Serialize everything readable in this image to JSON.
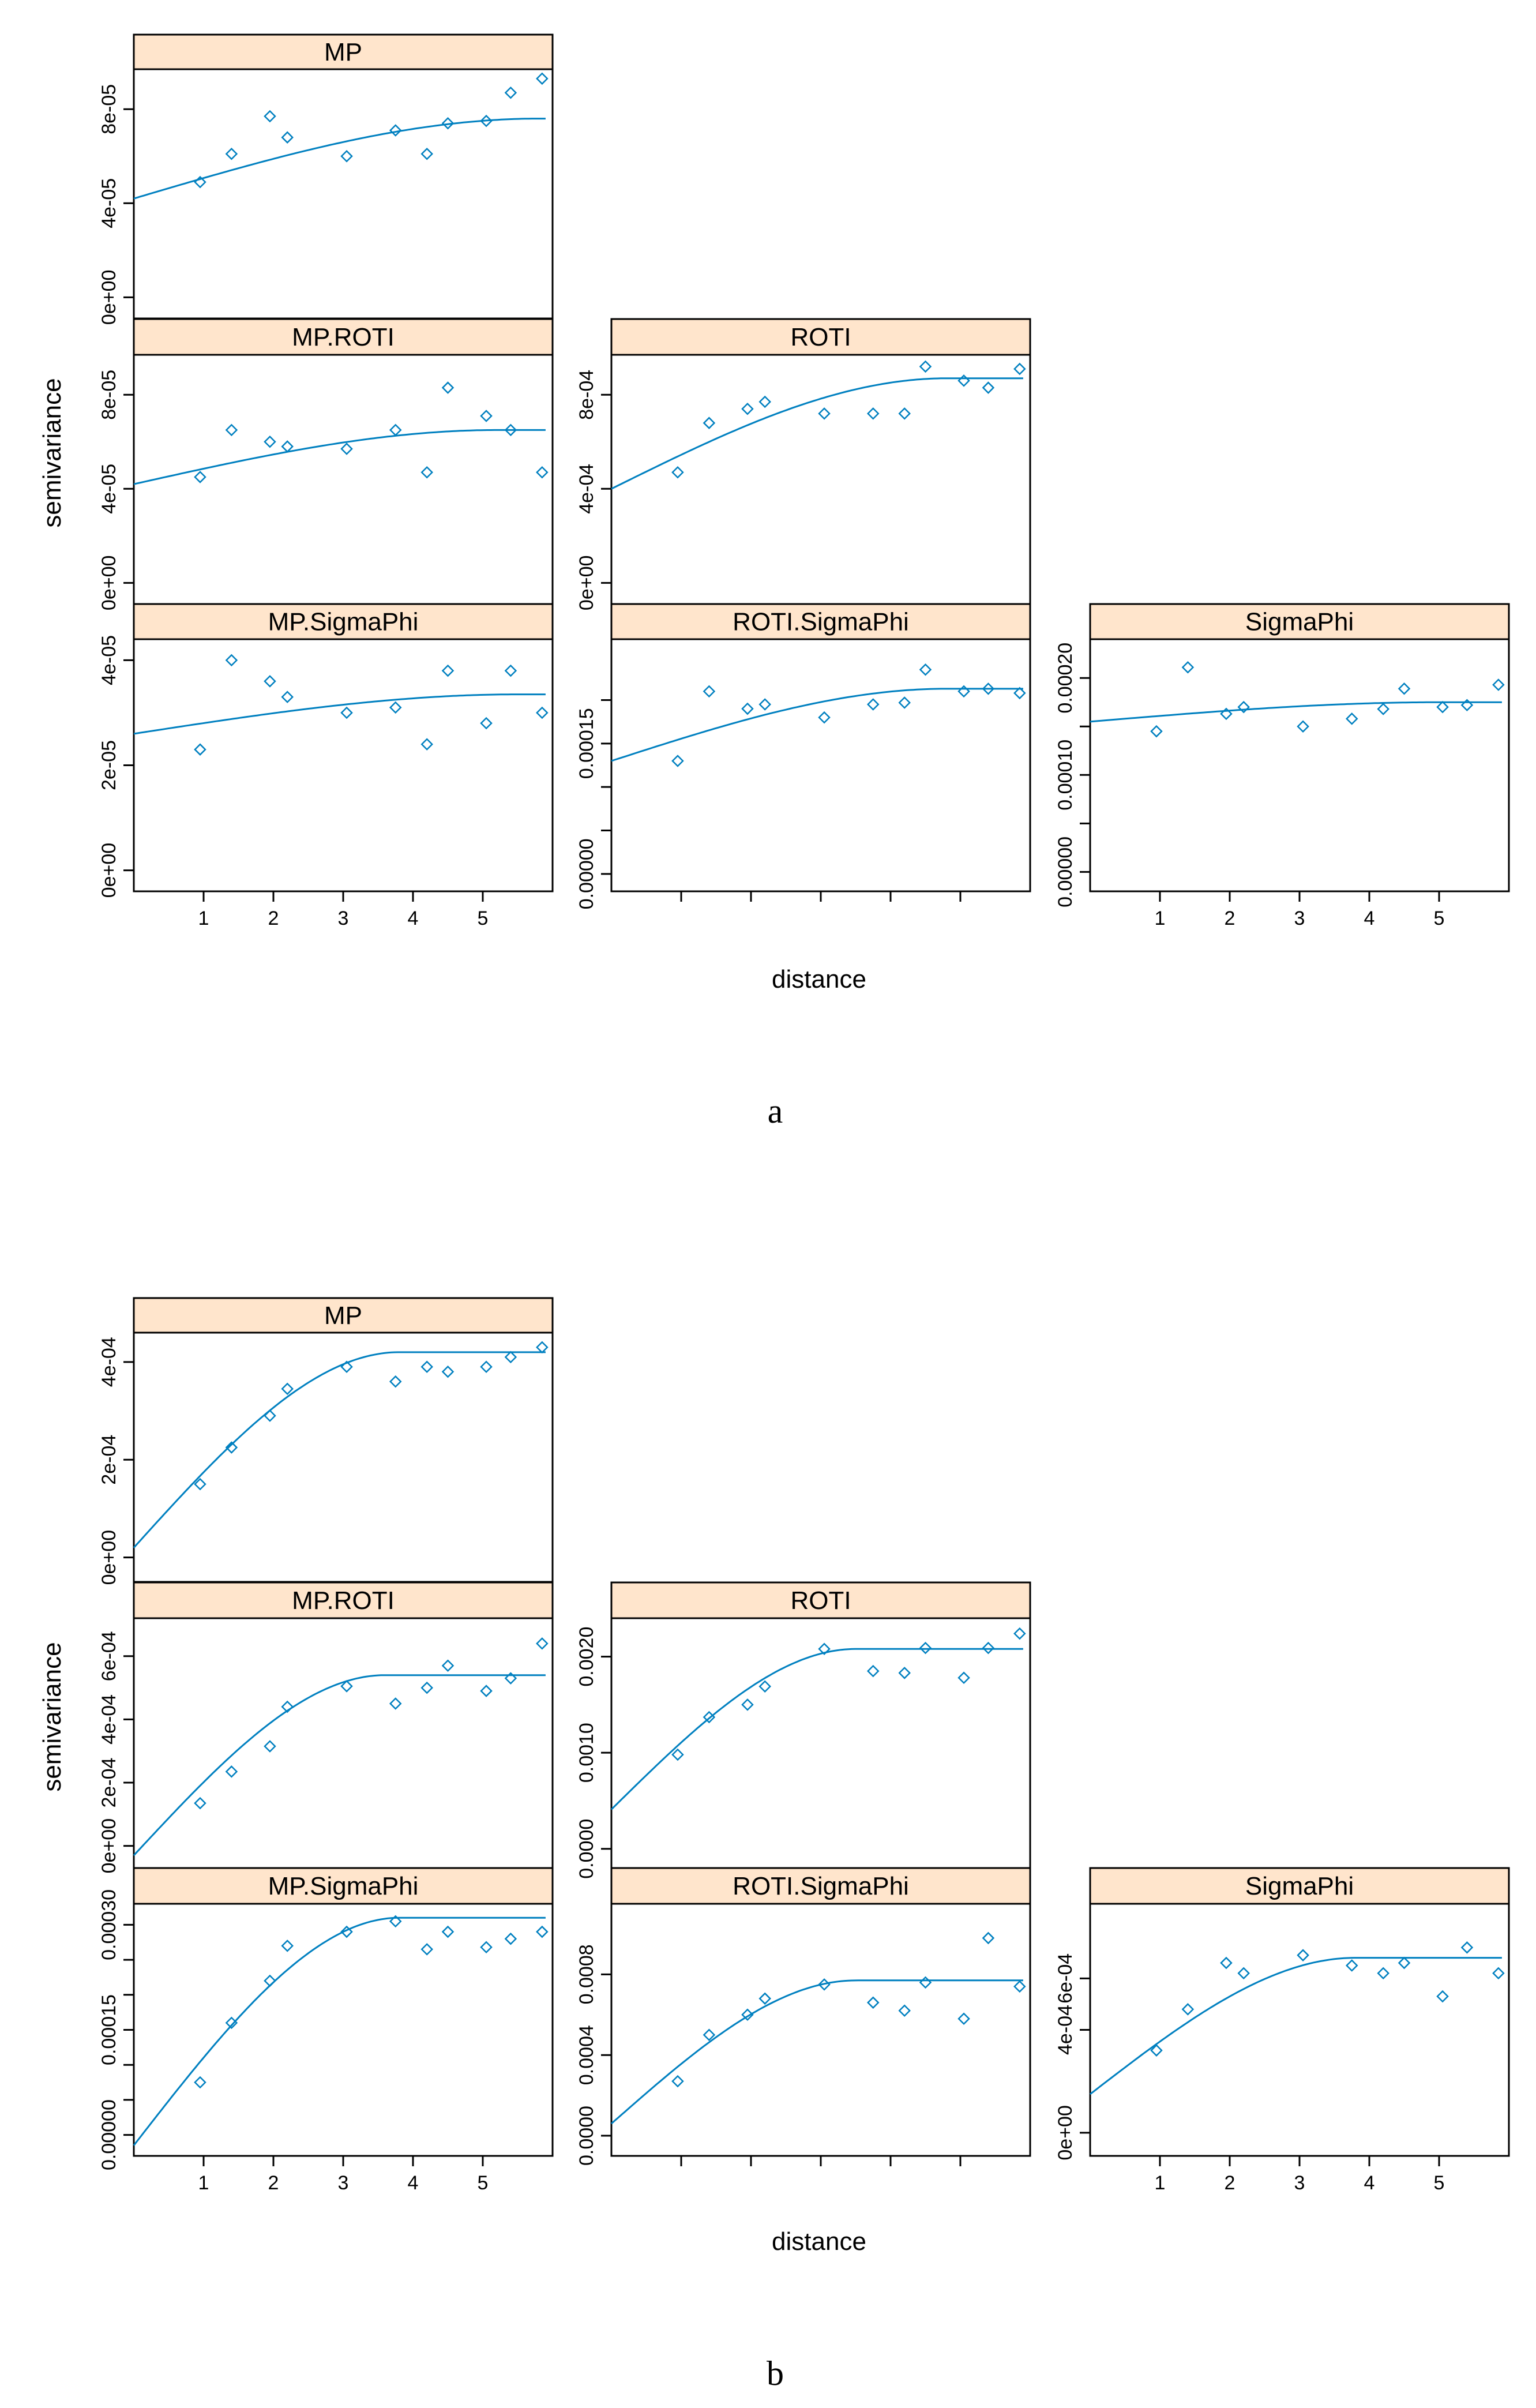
{
  "figure": {
    "xlabel": "distance",
    "ylabel": "semivariance",
    "caption_a": "a",
    "caption_b": "b",
    "colors": {
      "strip": "#FFE5CC",
      "line": "#0080C0",
      "points": "#0080C0",
      "frame": "#000000"
    }
  },
  "chart_data": [
    {
      "type": "scatter",
      "group": "a",
      "title": "MP",
      "xlabel": "distance",
      "ylabel": "semivariance",
      "xlim": [
        0,
        6
      ],
      "ylim": [
        -9e-06,
        9.7e-05
      ],
      "yticks": [
        0,
        4e-05,
        8e-05
      ],
      "ytick_labels": [
        "0e+00",
        "4e-05",
        "8e-05"
      ],
      "xticks": [
        1,
        2,
        3,
        4,
        5
      ],
      "xtick_labels": [],
      "points": [
        [
          0.95,
          4.9e-05
        ],
        [
          1.4,
          6.1e-05
        ],
        [
          1.95,
          7.7e-05
        ],
        [
          2.2,
          6.8e-05
        ],
        [
          3.05,
          6e-05
        ],
        [
          3.75,
          7.1e-05
        ],
        [
          4.2,
          6.1e-05
        ],
        [
          4.5,
          7.4e-05
        ],
        [
          5.05,
          7.5e-05
        ],
        [
          5.4,
          8.7e-05
        ],
        [
          5.85,
          9.3e-05
        ]
      ],
      "model": {
        "nugget": 4.2e-05,
        "sill": 7.6e-05,
        "range": 5.8
      }
    },
    {
      "type": "scatter",
      "group": "a",
      "title": "MP.ROTI",
      "xlim": [
        0,
        6
      ],
      "ylim": [
        -9e-06,
        9.7e-05
      ],
      "yticks": [
        0,
        4e-05,
        8e-05
      ],
      "ytick_labels": [
        "0e+00",
        "4e-05",
        "8e-05"
      ],
      "xticks": [
        1,
        2,
        3,
        4,
        5
      ],
      "xtick_labels": [],
      "points": [
        [
          0.95,
          4.5e-05
        ],
        [
          1.4,
          6.5e-05
        ],
        [
          1.95,
          6e-05
        ],
        [
          2.2,
          5.8e-05
        ],
        [
          3.05,
          5.7e-05
        ],
        [
          3.75,
          6.5e-05
        ],
        [
          4.2,
          4.7e-05
        ],
        [
          4.5,
          8.3e-05
        ],
        [
          5.05,
          7.1e-05
        ],
        [
          5.4,
          6.5e-05
        ],
        [
          5.85,
          4.7e-05
        ]
      ],
      "model": {
        "nugget": 4.2e-05,
        "sill": 6.5e-05,
        "range": 5.2
      }
    },
    {
      "type": "scatter",
      "group": "a",
      "title": "ROTI",
      "xlim": [
        0,
        6
      ],
      "ylim": [
        -9e-05,
        0.00097
      ],
      "yticks": [
        0,
        0.0004,
        0.0008
      ],
      "ytick_labels": [
        "0e+00",
        "4e-04",
        "8e-04"
      ],
      "xticks": [
        1,
        2,
        3,
        4,
        5
      ],
      "xtick_labels": [],
      "points": [
        [
          0.95,
          0.00047
        ],
        [
          1.4,
          0.00068
        ],
        [
          1.95,
          0.00074
        ],
        [
          2.2,
          0.00077
        ],
        [
          3.05,
          0.00072
        ],
        [
          3.75,
          0.00072
        ],
        [
          4.2,
          0.00072
        ],
        [
          4.5,
          0.00092
        ],
        [
          5.05,
          0.00086
        ],
        [
          5.4,
          0.00083
        ],
        [
          5.85,
          0.00091
        ]
      ],
      "model": {
        "nugget": 0.0004,
        "sill": 0.00087,
        "range": 4.8
      }
    },
    {
      "type": "scatter",
      "group": "a",
      "title": "MP.SigmaPhi",
      "xlim": [
        0,
        6
      ],
      "ylim": [
        -4e-06,
        4.4e-05
      ],
      "yticks": [
        0,
        2e-05,
        4e-05
      ],
      "ytick_labels": [
        "0e+00",
        "2e-05",
        "4e-05"
      ],
      "xticks": [
        1,
        2,
        3,
        4,
        5
      ],
      "xtick_labels": [
        "1",
        "2",
        "3",
        "4",
        "5"
      ],
      "points": [
        [
          0.95,
          2.3e-05
        ],
        [
          1.4,
          4e-05
        ],
        [
          1.95,
          3.6e-05
        ],
        [
          2.2,
          3.3e-05
        ],
        [
          3.05,
          3e-05
        ],
        [
          3.75,
          3.1e-05
        ],
        [
          4.2,
          2.4e-05
        ],
        [
          4.5,
          3.8e-05
        ],
        [
          5.05,
          2.8e-05
        ],
        [
          5.4,
          3.8e-05
        ],
        [
          5.85,
          3e-05
        ]
      ],
      "model": {
        "nugget": 2.6e-05,
        "sill": 3.35e-05,
        "range": 5.5
      }
    },
    {
      "type": "scatter",
      "group": "a",
      "title": "ROTI.SigmaPhi",
      "xlim": [
        0,
        6
      ],
      "ylim": [
        -2e-05,
        0.00027
      ],
      "yticks": [
        0,
        5e-05,
        0.0001,
        0.00015,
        0.0002
      ],
      "ytick_labels": [
        "0.00000",
        "",
        "",
        "0.00015",
        ""
      ],
      "xticks": [
        1,
        2,
        3,
        4,
        5
      ],
      "xtick_labels": [],
      "points": [
        [
          0.95,
          0.00013
        ],
        [
          1.4,
          0.00021
        ],
        [
          1.95,
          0.00019
        ],
        [
          2.2,
          0.000195
        ],
        [
          3.05,
          0.00018
        ],
        [
          3.75,
          0.000195
        ],
        [
          4.2,
          0.000197
        ],
        [
          4.5,
          0.000235
        ],
        [
          5.05,
          0.00021
        ],
        [
          5.4,
          0.000213
        ],
        [
          5.85,
          0.000208
        ]
      ],
      "model": {
        "nugget": 0.00013,
        "sill": 0.000213,
        "range": 4.8
      }
    },
    {
      "type": "scatter",
      "group": "a",
      "title": "SigmaPhi",
      "xlim": [
        0,
        6
      ],
      "ylim": [
        -2e-05,
        0.00024
      ],
      "yticks": [
        0,
        5e-05,
        0.0001,
        0.00015,
        0.0002
      ],
      "ytick_labels": [
        "0.00000",
        "",
        "0.00010",
        "",
        "0.00020"
      ],
      "xticks": [
        1,
        2,
        3,
        4,
        5
      ],
      "xtick_labels": [
        "1",
        "2",
        "3",
        "4",
        "5"
      ],
      "points": [
        [
          0.95,
          0.000145
        ],
        [
          1.4,
          0.000211
        ],
        [
          1.95,
          0.000163
        ],
        [
          2.2,
          0.00017
        ],
        [
          3.05,
          0.00015
        ],
        [
          3.75,
          0.000158
        ],
        [
          4.2,
          0.000168
        ],
        [
          4.5,
          0.000189
        ],
        [
          5.05,
          0.00017
        ],
        [
          5.4,
          0.000172
        ],
        [
          5.85,
          0.000193
        ]
      ],
      "model": {
        "nugget": 0.000155,
        "sill": 0.000175,
        "range": 5.0
      }
    },
    {
      "type": "scatter",
      "group": "b",
      "title": "MP",
      "xlim": [
        0,
        6
      ],
      "ylim": [
        -5e-05,
        0.00046
      ],
      "yticks": [
        0,
        0.0002,
        0.0004
      ],
      "ytick_labels": [
        "0e+00",
        "2e-04",
        "4e-04"
      ],
      "xticks": [
        1,
        2,
        3,
        4,
        5
      ],
      "xtick_labels": [],
      "points": [
        [
          0.95,
          0.00015
        ],
        [
          1.4,
          0.000225
        ],
        [
          1.95,
          0.00029
        ],
        [
          2.2,
          0.000345
        ],
        [
          3.05,
          0.00039
        ],
        [
          3.75,
          0.00036
        ],
        [
          4.2,
          0.00039
        ],
        [
          4.5,
          0.00038
        ],
        [
          5.05,
          0.00039
        ],
        [
          5.4,
          0.00041
        ],
        [
          5.85,
          0.00043
        ]
      ],
      "model": {
        "nugget": 2e-05,
        "sill": 0.00042,
        "range": 3.8
      }
    },
    {
      "type": "scatter",
      "group": "b",
      "title": "MP.ROTI",
      "xlim": [
        0,
        6
      ],
      "ylim": [
        -7e-05,
        0.00072
      ],
      "yticks": [
        0,
        0.0002,
        0.0004,
        0.0006
      ],
      "ytick_labels": [
        "0e+00",
        "2e-04",
        "4e-04",
        "6e-04"
      ],
      "xticks": [
        1,
        2,
        3,
        4,
        5
      ],
      "xtick_labels": [],
      "points": [
        [
          0.95,
          0.000135
        ],
        [
          1.4,
          0.000235
        ],
        [
          1.95,
          0.000315
        ],
        [
          2.2,
          0.00044
        ],
        [
          3.05,
          0.000505
        ],
        [
          3.75,
          0.00045
        ],
        [
          4.2,
          0.0005
        ],
        [
          4.5,
          0.00057
        ],
        [
          5.05,
          0.00049
        ],
        [
          5.4,
          0.00053
        ],
        [
          5.85,
          0.00064
        ]
      ],
      "model": {
        "nugget": -3e-05,
        "sill": 0.00054,
        "range": 3.6
      }
    },
    {
      "type": "scatter",
      "group": "b",
      "title": "ROTI",
      "xlim": [
        0,
        6
      ],
      "ylim": [
        -0.0002,
        0.0024
      ],
      "yticks": [
        0,
        0.001,
        0.002
      ],
      "ytick_labels": [
        "0.0000",
        "0.0010",
        "0.0020"
      ],
      "xticks": [
        1,
        2,
        3,
        4,
        5
      ],
      "xtick_labels": [],
      "points": [
        [
          0.95,
          0.00098
        ],
        [
          1.4,
          0.00137
        ],
        [
          1.95,
          0.0015
        ],
        [
          2.2,
          0.00169
        ],
        [
          3.05,
          0.00208
        ],
        [
          3.75,
          0.00185
        ],
        [
          4.2,
          0.00183
        ],
        [
          4.5,
          0.00209
        ],
        [
          5.05,
          0.00178
        ],
        [
          5.4,
          0.00209
        ],
        [
          5.85,
          0.00224
        ]
      ],
      "model": {
        "nugget": 0.00041,
        "sill": 0.00208,
        "range": 3.5
      }
    },
    {
      "type": "scatter",
      "group": "b",
      "title": "MP.SigmaPhi",
      "xlim": [
        0,
        6
      ],
      "ylim": [
        -3e-05,
        0.00033
      ],
      "yticks": [
        0,
        5e-05,
        0.0001,
        0.00015,
        0.0002,
        0.00025,
        0.0003
      ],
      "ytick_labels": [
        "0.00000",
        "",
        "",
        "0.00015",
        "",
        "",
        "0.00030"
      ],
      "xticks": [
        1,
        2,
        3,
        4,
        5
      ],
      "xtick_labels": [
        "1",
        "2",
        "3",
        "4",
        "5"
      ],
      "points": [
        [
          0.95,
          7.5e-05
        ],
        [
          1.4,
          0.00016
        ],
        [
          1.95,
          0.00022
        ],
        [
          2.2,
          0.00027
        ],
        [
          3.05,
          0.00029
        ],
        [
          3.75,
          0.000305
        ],
        [
          4.2,
          0.000265
        ],
        [
          4.5,
          0.00029
        ],
        [
          5.05,
          0.000268
        ],
        [
          5.4,
          0.00028
        ],
        [
          5.85,
          0.00029
        ]
      ],
      "model": {
        "nugget": -1.5e-05,
        "sill": 0.00031,
        "range": 3.8
      }
    },
    {
      "type": "scatter",
      "group": "b",
      "title": "ROTI.SigmaPhi",
      "xlim": [
        0,
        6
      ],
      "ylim": [
        -0.0001,
        0.00115
      ],
      "yticks": [
        0,
        0.0004,
        0.0008
      ],
      "ytick_labels": [
        "0.0000",
        "0.0004",
        "0.0008"
      ],
      "xticks": [
        1,
        2,
        3,
        4,
        5
      ],
      "xtick_labels": [],
      "points": [
        [
          0.95,
          0.00027
        ],
        [
          1.4,
          0.0005
        ],
        [
          1.95,
          0.0006
        ],
        [
          2.2,
          0.00068
        ],
        [
          3.05,
          0.00075
        ],
        [
          3.75,
          0.00066
        ],
        [
          4.2,
          0.00062
        ],
        [
          4.5,
          0.00076
        ],
        [
          5.05,
          0.00058
        ],
        [
          5.4,
          0.00098
        ],
        [
          5.85,
          0.00074
        ]
      ],
      "model": {
        "nugget": 6e-05,
        "sill": 0.00077,
        "range": 3.5
      }
    },
    {
      "type": "scatter",
      "group": "b",
      "title": "SigmaPhi",
      "xlim": [
        0,
        6
      ],
      "ylim": [
        -9e-05,
        0.00089
      ],
      "yticks": [
        0,
        0.0004,
        0.0006
      ],
      "ytick_labels": [
        "0e+00",
        "4e-04",
        "6e-04"
      ],
      "xticks": [
        1,
        2,
        3,
        4,
        5
      ],
      "xtick_labels": [
        "1",
        "2",
        "3",
        "4",
        "5"
      ],
      "points": [
        [
          0.95,
          0.00032
        ],
        [
          1.4,
          0.00048
        ],
        [
          1.95,
          0.00066
        ],
        [
          2.2,
          0.00062
        ],
        [
          3.05,
          0.00069
        ],
        [
          3.75,
          0.00065
        ],
        [
          4.2,
          0.00062
        ],
        [
          4.5,
          0.00066
        ],
        [
          5.05,
          0.00053
        ],
        [
          5.4,
          0.00072
        ],
        [
          5.85,
          0.00062
        ]
      ],
      "model": {
        "nugget": 0.00015,
        "sill": 0.00068,
        "range": 3.8
      }
    }
  ]
}
